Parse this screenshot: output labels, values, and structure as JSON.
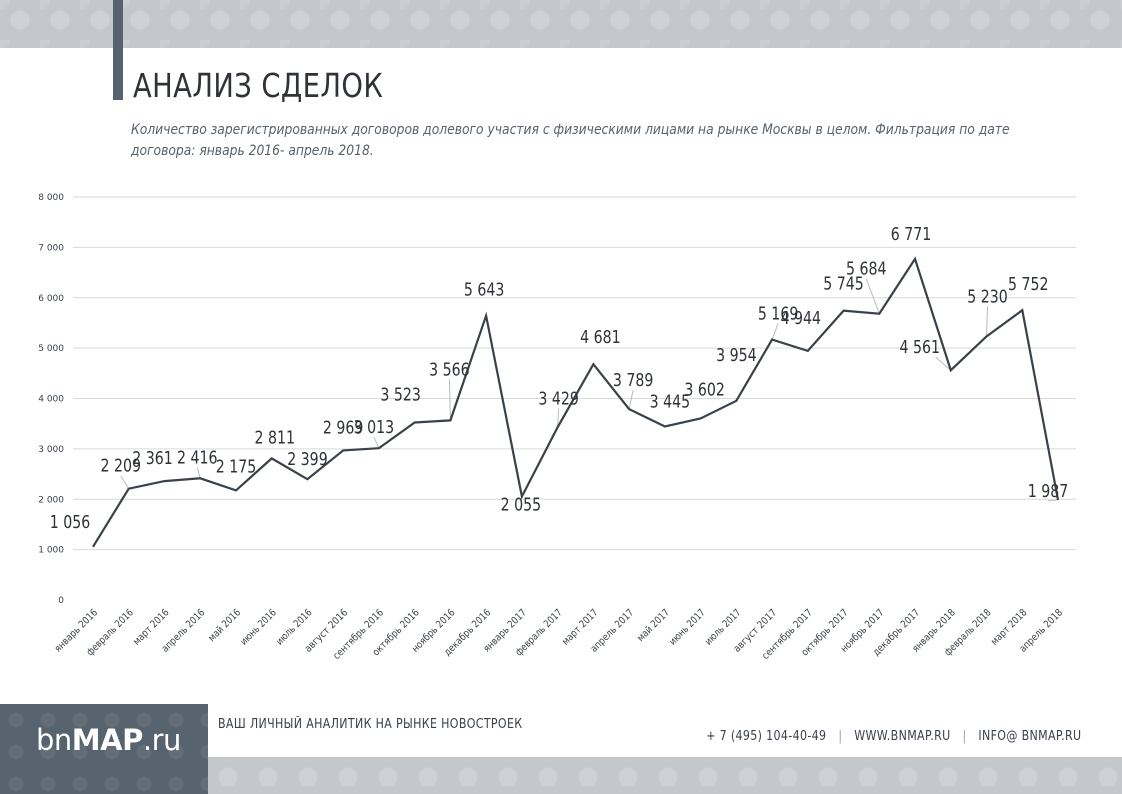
{
  "page": {
    "title": "АНАЛИЗ СДЕЛОК",
    "subtitle": "Количество зарегистрированных договоров долевого участия с физическими лицами на рынке Москвы в целом. Фильтрация по дате договора: январь 2016- апрель 2018."
  },
  "footer": {
    "logo_prefix": "bn",
    "logo_bold": "MAP",
    "logo_suffix": ".ru",
    "tagline": "ВАШ ЛИЧНЫЙ АНАЛИТИК НА РЫНКЕ НОВОСТРОЕК",
    "phone": "+ 7 (495) 104-40-49",
    "website": "WWW.BNMAP.RU",
    "email": "INFO@ BNMAP.RU"
  },
  "colors": {
    "line": "#3a4149",
    "grid": "#d9d9d9",
    "accent_dark": "#56626d",
    "band": "#c4c7cb"
  },
  "chart_data": {
    "type": "line",
    "title": "",
    "xlabel": "",
    "ylabel": "",
    "ylim": [
      0,
      8000
    ],
    "yticks": [
      0,
      1000,
      2000,
      3000,
      4000,
      5000,
      6000,
      7000,
      8000
    ],
    "ytick_labels": [
      "0",
      "1 000",
      "2 000",
      "3 000",
      "4 000",
      "5 000",
      "6 000",
      "7 000",
      "8 000"
    ],
    "grid": true,
    "legend": "none",
    "categories": [
      "январь 2016",
      "февраль 2016",
      "март 2016",
      "апрель 2016",
      "май 2016",
      "июнь 2016",
      "июль 2016",
      "август 2016",
      "сентябрь 2016",
      "октябрь 2016",
      "ноябрь 2016",
      "декабрь 2016",
      "январь 2017",
      "февраль 2017",
      "март 2017",
      "апрель 2017",
      "май 2017",
      "июнь 2017",
      "июль 2017",
      "август 2017",
      "сентябрь 2017",
      "октябрь 2017",
      "ноябрь 2017",
      "декабрь 2017",
      "январь 2018",
      "февраль 2018",
      "март 2018",
      "апрель 2018"
    ],
    "values": [
      1056,
      2209,
      2361,
      2416,
      2175,
      2811,
      2399,
      2969,
      3013,
      3523,
      3566,
      5643,
      2055,
      3429,
      4681,
      3789,
      3445,
      3602,
      3954,
      5169,
      4944,
      5745,
      5684,
      6771,
      4561,
      5230,
      5752,
      1987
    ],
    "value_labels": [
      "1 056",
      "2 209",
      "2 361",
      "2 416",
      "2 175",
      "2 811",
      "2 399",
      "2 969",
      "3 013",
      "3 523",
      "3 566",
      "5 643",
      "2 055",
      "3 429",
      "4 681",
      "3 789",
      "3 445",
      "3 602",
      "3 954",
      "5 169",
      "4 944",
      "5 745",
      "5 684",
      "6 771",
      "4 561",
      "5 230",
      "5 752",
      "1 987"
    ]
  }
}
